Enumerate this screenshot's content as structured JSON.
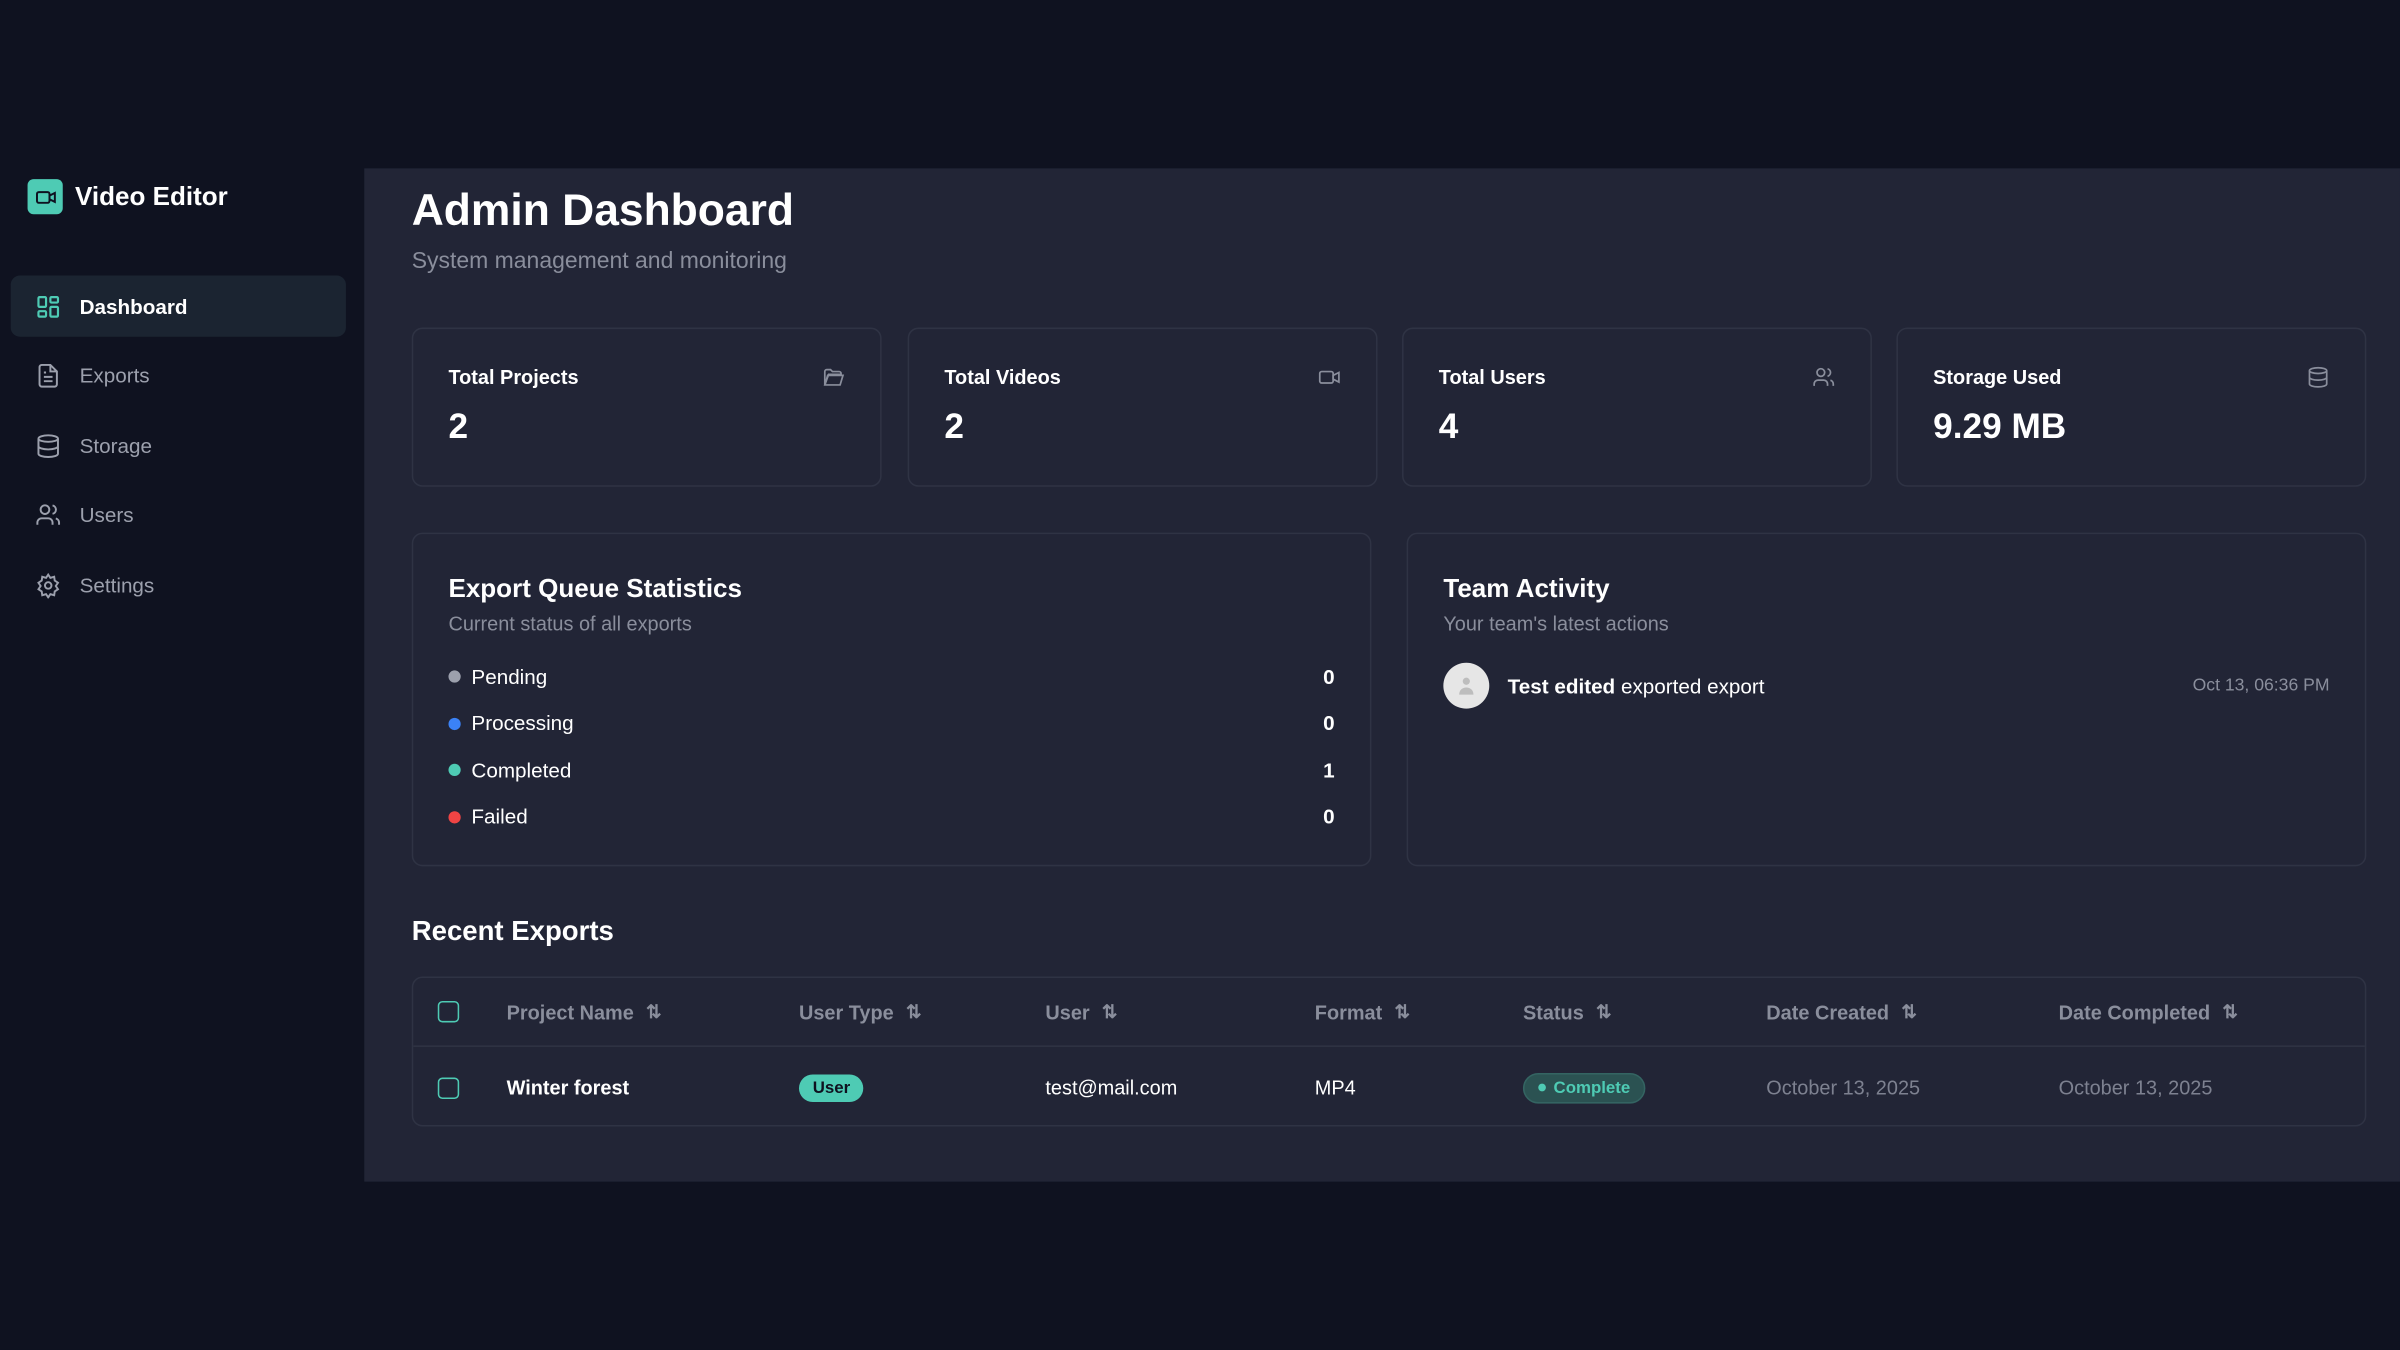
{
  "app": {
    "title": "Video Editor",
    "accent": "#4ecbb4"
  },
  "sidebar": {
    "items": [
      {
        "label": "Dashboard",
        "icon": "dashboard-grid-icon",
        "active": true
      },
      {
        "label": "Exports",
        "icon": "file-icon"
      },
      {
        "label": "Storage",
        "icon": "database-icon"
      },
      {
        "label": "Users",
        "icon": "users-icon"
      },
      {
        "label": "Settings",
        "icon": "gear-icon"
      }
    ]
  },
  "header": {
    "title": "Admin Dashboard",
    "subtitle": "System management and monitoring"
  },
  "stats": [
    {
      "label": "Total Projects",
      "value": "2",
      "icon": "folder-icon"
    },
    {
      "label": "Total Videos",
      "value": "2",
      "icon": "video-icon"
    },
    {
      "label": "Total Users",
      "value": "4",
      "icon": "users-icon"
    },
    {
      "label": "Storage Used",
      "value": "9.29 MB",
      "icon": "database-icon"
    }
  ],
  "queue": {
    "title": "Export Queue Statistics",
    "subtitle": "Current status of all exports",
    "rows": [
      {
        "label": "Pending",
        "count": "0",
        "color": "#9ca0ad"
      },
      {
        "label": "Processing",
        "count": "0",
        "color": "#3b82f6"
      },
      {
        "label": "Completed",
        "count": "1",
        "color": "#4ecbb4"
      },
      {
        "label": "Failed",
        "count": "0",
        "color": "#ef4444"
      }
    ]
  },
  "activity": {
    "title": "Team Activity",
    "subtitle": "Your team's latest actions",
    "items": [
      {
        "actor": "Test edited",
        "action": "exported export",
        "time": "Oct 13, 06:36 PM"
      }
    ]
  },
  "recent": {
    "title": "Recent Exports",
    "columns": [
      "Project Name",
      "User Type",
      "User",
      "Format",
      "Status",
      "Date Created",
      "Date Completed"
    ],
    "rows": [
      {
        "project": "Winter forest",
        "user_type": "User",
        "user": "test@mail.com",
        "format": "MP4",
        "status": "Complete",
        "created": "October 13, 2025",
        "completed": "October 13, 2025"
      }
    ]
  }
}
